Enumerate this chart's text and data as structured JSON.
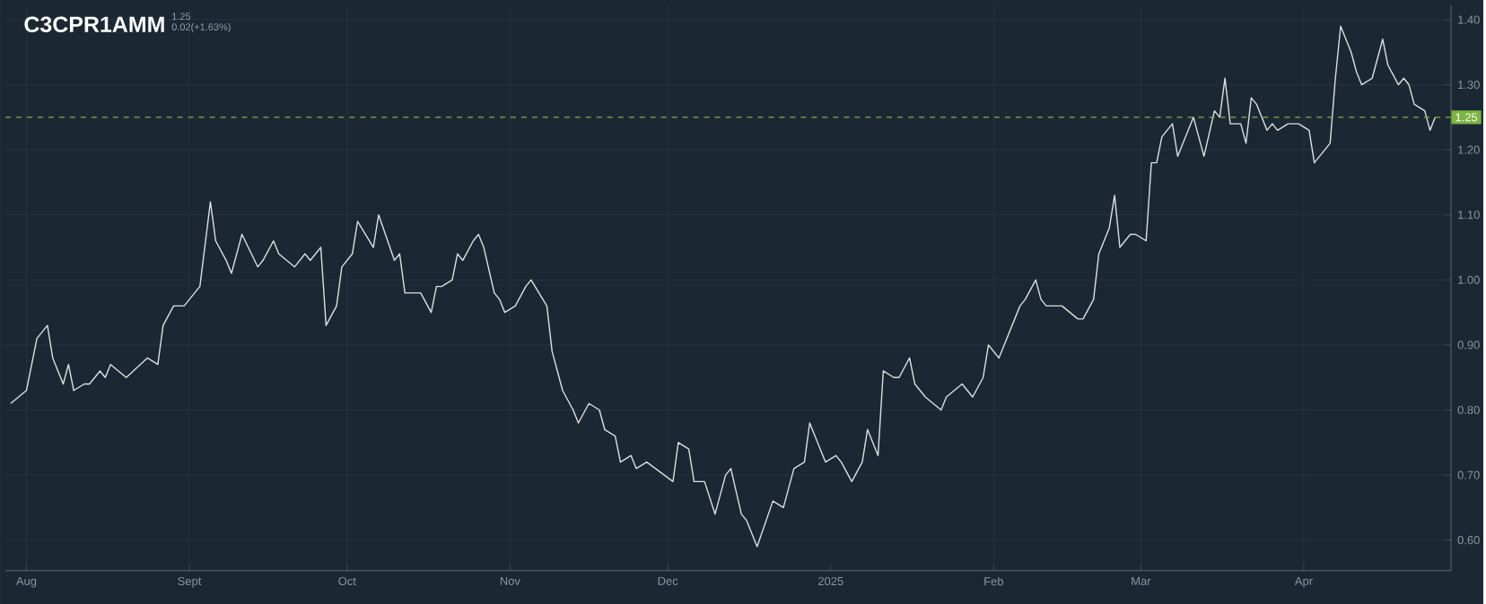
{
  "chart_data": {
    "type": "line",
    "title": "C3CPR1AMM",
    "subtitle": "1.25",
    "annotations": [
      "0.02(+1.63%)"
    ],
    "x": [
      "2024-07-29",
      "2024-08-01",
      "2024-08-03",
      "2024-08-05",
      "2024-08-06",
      "2024-08-08",
      "2024-08-09",
      "2024-08-10",
      "2024-08-12",
      "2024-08-13",
      "2024-08-15",
      "2024-08-16",
      "2024-08-17",
      "2024-08-20",
      "2024-08-24",
      "2024-08-26",
      "2024-08-27",
      "2024-08-29",
      "2024-08-31",
      "2024-09-02",
      "2024-09-03",
      "2024-09-05",
      "2024-09-06",
      "2024-09-08",
      "2024-09-09",
      "2024-09-11",
      "2024-09-14",
      "2024-09-15",
      "2024-09-17",
      "2024-09-18",
      "2024-09-21",
      "2024-09-23",
      "2024-09-24",
      "2024-09-26",
      "2024-09-27",
      "2024-09-29",
      "2024-09-30",
      "2024-10-02",
      "2024-10-03",
      "2024-10-06",
      "2024-10-07",
      "2024-10-10",
      "2024-10-11",
      "2024-10-12",
      "2024-10-15",
      "2024-10-17",
      "2024-10-18",
      "2024-10-19",
      "2024-10-21",
      "2024-10-22",
      "2024-10-23",
      "2024-10-25",
      "2024-10-26",
      "2024-10-27",
      "2024-10-29",
      "2024-10-30",
      "2024-10-31",
      "2024-11-02",
      "2024-11-04",
      "2024-11-05",
      "2024-11-08",
      "2024-11-09",
      "2024-11-11",
      "2024-11-13",
      "2024-11-14",
      "2024-11-16",
      "2024-11-18",
      "2024-11-19",
      "2024-11-21",
      "2024-11-22",
      "2024-11-24",
      "2024-11-25",
      "2024-11-27",
      "2024-12-02",
      "2024-12-03",
      "2024-12-05",
      "2024-12-06",
      "2024-12-08",
      "2024-12-10",
      "2024-12-12",
      "2024-12-13",
      "2024-12-15",
      "2024-12-16",
      "2024-12-18",
      "2024-12-21",
      "2024-12-23",
      "2024-12-25",
      "2024-12-27",
      "2024-12-28",
      "2024-12-30",
      "2024-12-31",
      "2025-01-02",
      "2025-01-03",
      "2025-01-05",
      "2025-01-07",
      "2025-01-08",
      "2025-01-10",
      "2025-01-11",
      "2025-01-13",
      "2025-01-14",
      "2025-01-16",
      "2025-01-17",
      "2025-01-19",
      "2025-01-22",
      "2025-01-23",
      "2025-01-26",
      "2025-01-28",
      "2025-01-30",
      "2025-01-31",
      "2025-02-02",
      "2025-02-04",
      "2025-02-06",
      "2025-02-07",
      "2025-02-09",
      "2025-02-10",
      "2025-02-11",
      "2025-02-14",
      "2025-02-17",
      "2025-02-18",
      "2025-02-20",
      "2025-02-21",
      "2025-02-23",
      "2025-02-24",
      "2025-02-25",
      "2025-02-27",
      "2025-02-28",
      "2025-03-02",
      "2025-03-03",
      "2025-03-04",
      "2025-03-05",
      "2025-03-07",
      "2025-03-08",
      "2025-03-11",
      "2025-03-13",
      "2025-03-15",
      "2025-03-16",
      "2025-03-17",
      "2025-03-18",
      "2025-03-20",
      "2025-03-21",
      "2025-03-22",
      "2025-03-23",
      "2025-03-25",
      "2025-03-26",
      "2025-03-27",
      "2025-03-29",
      "2025-03-31",
      "2025-04-02",
      "2025-04-03",
      "2025-04-04",
      "2025-04-06",
      "2025-04-07",
      "2025-04-08",
      "2025-04-10",
      "2025-04-11",
      "2025-04-12",
      "2025-04-14",
      "2025-04-16",
      "2025-04-17",
      "2025-04-19",
      "2025-04-20",
      "2025-04-21",
      "2025-04-22",
      "2025-04-24",
      "2025-04-25",
      "2025-04-26"
    ],
    "series": [
      {
        "color": "#dcdfe2",
        "values": [
          0.81,
          0.83,
          0.91,
          0.93,
          0.88,
          0.84,
          0.87,
          0.83,
          0.84,
          0.84,
          0.86,
          0.85,
          0.87,
          0.85,
          0.88,
          0.87,
          0.93,
          0.96,
          0.96,
          0.98,
          0.99,
          1.12,
          1.06,
          1.03,
          1.01,
          1.07,
          1.02,
          1.03,
          1.06,
          1.04,
          1.02,
          1.04,
          1.03,
          1.05,
          0.93,
          0.96,
          1.02,
          1.04,
          1.09,
          1.05,
          1.1,
          1.03,
          1.04,
          0.98,
          0.98,
          0.95,
          0.99,
          0.99,
          1.0,
          1.04,
          1.03,
          1.06,
          1.07,
          1.05,
          0.98,
          0.97,
          0.95,
          0.96,
          0.99,
          1.0,
          0.96,
          0.89,
          0.83,
          0.8,
          0.78,
          0.81,
          0.8,
          0.77,
          0.76,
          0.72,
          0.73,
          0.71,
          0.72,
          0.69,
          0.75,
          0.74,
          0.69,
          0.69,
          0.64,
          0.7,
          0.71,
          0.64,
          0.63,
          0.59,
          0.66,
          0.65,
          0.71,
          0.72,
          0.78,
          0.74,
          0.72,
          0.73,
          0.72,
          0.69,
          0.72,
          0.77,
          0.73,
          0.86,
          0.85,
          0.85,
          0.88,
          0.84,
          0.82,
          0.8,
          0.82,
          0.84,
          0.82,
          0.85,
          0.9,
          0.88,
          0.92,
          0.96,
          0.97,
          1.0,
          0.97,
          0.96,
          0.96,
          0.94,
          0.94,
          0.97,
          1.04,
          1.08,
          1.13,
          1.05,
          1.07,
          1.07,
          1.06,
          1.18,
          1.18,
          1.22,
          1.24,
          1.19,
          1.25,
          1.19,
          1.26,
          1.25,
          1.31,
          1.24,
          1.24,
          1.21,
          1.28,
          1.27,
          1.23,
          1.24,
          1.23,
          1.24,
          1.24,
          1.23,
          1.18,
          1.19,
          1.21,
          1.31,
          1.39,
          1.35,
          1.32,
          1.3,
          1.31,
          1.37,
          1.33,
          1.3,
          1.31,
          1.3,
          1.27,
          1.26,
          1.23,
          1.25
        ]
      }
    ],
    "xlim": [
      "2024-07-28",
      "2025-04-29"
    ],
    "xticks": [
      {
        "value": "2024-08-01",
        "label": "Aug"
      },
      {
        "value": "2024-09-01",
        "label": "Sept"
      },
      {
        "value": "2024-10-01",
        "label": "Oct"
      },
      {
        "value": "2024-11-01",
        "label": "Nov"
      },
      {
        "value": "2024-12-01",
        "label": "Dec"
      },
      {
        "value": "2025-01-01",
        "label": "2025"
      },
      {
        "value": "2025-02-01",
        "label": "Feb"
      },
      {
        "value": "2025-03-01",
        "label": "Mar"
      },
      {
        "value": "2025-04-01",
        "label": "Apr"
      }
    ],
    "ylim": [
      0.553,
      1.422
    ],
    "yticks": [
      {
        "value": 0.6,
        "label": "0.60"
      },
      {
        "value": 0.7,
        "label": "0.70"
      },
      {
        "value": 0.8,
        "label": "0.80"
      },
      {
        "value": 0.9,
        "label": "0.90"
      },
      {
        "value": 1.0,
        "label": "1.00"
      },
      {
        "value": 1.1,
        "label": "1.10"
      },
      {
        "value": 1.2,
        "label": "1.20"
      },
      {
        "value": 1.3,
        "label": "1.30"
      },
      {
        "value": 1.4,
        "label": "1.40"
      }
    ],
    "grid": true,
    "ref_lines": [
      {
        "axis": "y",
        "value": 1.25,
        "label": "1.25",
        "color": "#7cb342",
        "line_style": "dashed"
      }
    ]
  }
}
